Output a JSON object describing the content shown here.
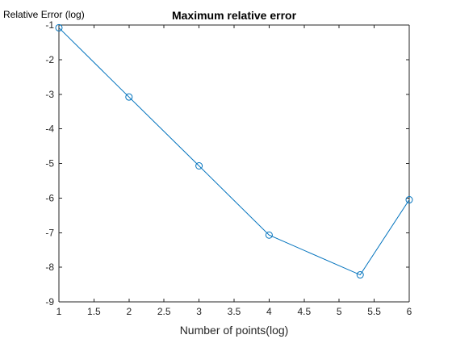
{
  "chart_data": {
    "type": "line",
    "title": "Maximum relative error",
    "xlabel": "Number of points(log)",
    "ylabel": "Relative Error (log)",
    "xlim": [
      1,
      6
    ],
    "ylim": [
      -9,
      -1
    ],
    "xticks": [
      1,
      1.5,
      2,
      2.5,
      3,
      3.5,
      4,
      4.5,
      5,
      5.5,
      6
    ],
    "xtick_labels": [
      "1",
      "1.5",
      "2",
      "2.5",
      "3",
      "3.5",
      "4",
      "4.5",
      "5",
      "5.5",
      "6"
    ],
    "yticks": [
      -9,
      -8,
      -7,
      -6,
      -5,
      -4,
      -3,
      -2,
      -1
    ],
    "ytick_labels": [
      "-9",
      "-8",
      "-7",
      "-6",
      "-5",
      "-4",
      "-3",
      "-2",
      "-1"
    ],
    "grid": false,
    "series": [
      {
        "color": "#0072BD",
        "marker": "circle",
        "x": [
          1,
          2,
          3,
          4,
          5.3,
          6
        ],
        "y": [
          -1.08,
          -3.08,
          -5.07,
          -7.07,
          -8.22,
          -6.05
        ]
      }
    ]
  }
}
